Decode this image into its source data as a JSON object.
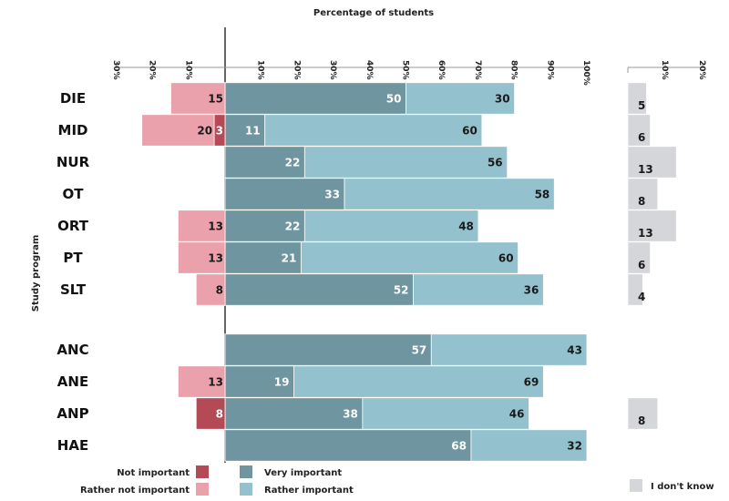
{
  "chart_data": {
    "type": "bar",
    "subtype": "diverging-stacked-horizontal",
    "title": "Percentage of students",
    "ylabel": "Study program",
    "categories": [
      "DIE",
      "MID",
      "NUR",
      "OT",
      "ORT",
      "PT",
      "SLT",
      "ANC",
      "ANE",
      "ANP",
      "HAE"
    ],
    "groups": [
      [
        "DIE",
        "MID",
        "NUR",
        "OT",
        "ORT",
        "PT",
        "SLT"
      ],
      [
        "ANC",
        "ANE",
        "ANP",
        "HAE"
      ]
    ],
    "series": [
      {
        "name": "Not important",
        "side": "left",
        "color": "#b34a55",
        "values": [
          null,
          3,
          null,
          null,
          null,
          null,
          null,
          null,
          null,
          8,
          null
        ]
      },
      {
        "name": "Rather not important",
        "side": "left",
        "color": "#eaa1ac",
        "values": [
          15,
          20,
          null,
          null,
          13,
          13,
          8,
          null,
          13,
          null,
          null
        ]
      },
      {
        "name": "Very important",
        "side": "right",
        "color": "#6f96a0",
        "values": [
          50,
          11,
          22,
          33,
          22,
          21,
          52,
          57,
          19,
          38,
          68
        ]
      },
      {
        "name": "Rather important",
        "side": "right",
        "color": "#93c2ce",
        "values": [
          30,
          60,
          56,
          58,
          48,
          60,
          36,
          43,
          69,
          46,
          32
        ]
      },
      {
        "name": "I don't know",
        "side": "separate",
        "color": "#d4d6d9",
        "values": [
          5,
          6,
          13,
          8,
          13,
          6,
          4,
          null,
          null,
          8,
          null
        ]
      }
    ],
    "main_axis": {
      "ticks": [
        "10%",
        "20%",
        "30%",
        "40%",
        "50%",
        "60%",
        "70%",
        "80%",
        "90%",
        "100%"
      ],
      "range": [
        0,
        100
      ]
    },
    "left_axis": {
      "ticks": [
        "10%",
        "20%",
        "30%"
      ],
      "range": [
        0,
        30
      ]
    },
    "dontknow_axis": {
      "ticks": [
        "10%",
        "20%"
      ],
      "range": [
        0,
        20
      ]
    },
    "legend": [
      {
        "label": "Not important",
        "color": "#b34a55"
      },
      {
        "label": "Rather not important",
        "color": "#eaa1ac"
      },
      {
        "label": "Very important",
        "color": "#6f96a0"
      },
      {
        "label": "Rather important",
        "color": "#93c2ce"
      },
      {
        "label": "I don't know",
        "color": "#d4d6d9"
      }
    ]
  }
}
